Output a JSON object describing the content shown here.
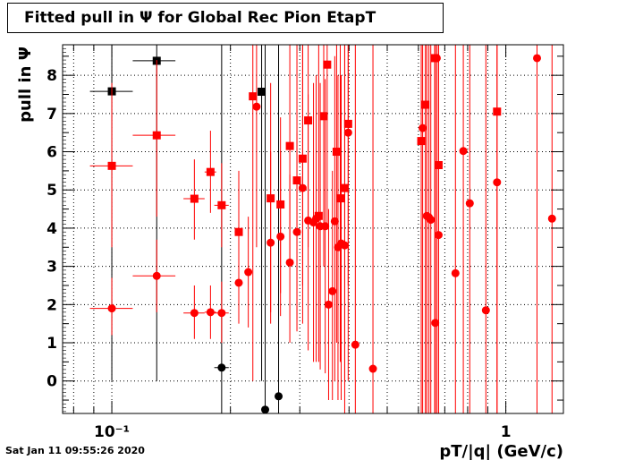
{
  "title": "Fitted pull in  Ψ  for Global Rec Pion EtapT",
  "timestamp": "Sat Jan 11 09:55:26 2020",
  "chart_data": {
    "type": "scatter",
    "title": "Fitted pull in  Ψ  for Global Rec Pion EtapT",
    "xlabel": "pT/|q| (GeV/c)",
    "ylabel": "pull in  Ψ",
    "x_scale": "log",
    "xlim": [
      0.075,
      1.4
    ],
    "ylim": [
      -0.85,
      8.8
    ],
    "grid": true,
    "x_ticks": [
      {
        "value": 0.1,
        "label": "10⁻¹"
      },
      {
        "value": 1,
        "label": "1"
      }
    ],
    "y_ticks": [
      0,
      1,
      2,
      3,
      4,
      5,
      6,
      7,
      8
    ],
    "series": [
      {
        "color": "#000000",
        "marker": "square",
        "points": [
          {
            "x": 0.1,
            "xlo": 0.088,
            "xhi": 0.113,
            "y": 7.58,
            "ylo": 0.0,
            "yhi": 8.8
          },
          {
            "x": 0.13,
            "xlo": 0.113,
            "xhi": 0.145,
            "y": 8.38,
            "ylo": 0.0,
            "yhi": 8.8
          },
          {
            "x": 0.24,
            "xlo": 0.235,
            "xhi": 0.245,
            "y": 7.57,
            "ylo": 0.0,
            "yhi": 8.8
          }
        ]
      },
      {
        "color": "#000000",
        "marker": "circle",
        "points": [
          {
            "x": 0.19,
            "xlo": 0.182,
            "xhi": 0.198,
            "y": 0.35,
            "ylo": -0.85,
            "yhi": 8.8
          },
          {
            "x": 0.245,
            "xlo": 0.24,
            "xhi": 0.25,
            "y": -0.75,
            "ylo": -0.85,
            "yhi": 8.8
          },
          {
            "x": 0.265,
            "xlo": 0.26,
            "xhi": 0.27,
            "y": -0.4,
            "ylo": -0.85,
            "yhi": 8.8
          }
        ]
      },
      {
        "color": "#ff0000",
        "marker": "square",
        "points": [
          {
            "x": 0.1,
            "xlo": 0.088,
            "xhi": 0.113,
            "y": 5.63,
            "ylo": 3.5,
            "yhi": 7.8
          },
          {
            "x": 0.13,
            "xlo": 0.113,
            "xhi": 0.145,
            "y": 6.43,
            "ylo": 4.3,
            "yhi": 8.4
          },
          {
            "x": 0.162,
            "xlo": 0.152,
            "xhi": 0.172,
            "y": 4.77,
            "ylo": 3.7,
            "yhi": 5.8
          },
          {
            "x": 0.178,
            "xlo": 0.172,
            "xhi": 0.184,
            "y": 5.47,
            "ylo": 4.4,
            "yhi": 6.55
          },
          {
            "x": 0.19,
            "xlo": 0.182,
            "xhi": 0.198,
            "y": 4.6,
            "ylo": 3.5,
            "yhi": 5.7
          },
          {
            "x": 0.21,
            "xlo": 0.205,
            "xhi": 0.215,
            "y": 3.9,
            "ylo": 2.4,
            "yhi": 5.5
          },
          {
            "x": 0.228,
            "xlo": 0.223,
            "xhi": 0.233,
            "y": 7.45,
            "ylo": 0.0,
            "yhi": 8.8
          },
          {
            "x": 0.253,
            "xlo": 0.248,
            "xhi": 0.258,
            "y": 4.78,
            "ylo": 1.8,
            "yhi": 7.8
          },
          {
            "x": 0.268,
            "xlo": 0.263,
            "xhi": 0.273,
            "y": 4.62,
            "ylo": 2.3,
            "yhi": 6.9
          },
          {
            "x": 0.283,
            "xlo": 0.279,
            "xhi": 0.287,
            "y": 6.15,
            "ylo": 3.2,
            "yhi": 8.8
          },
          {
            "x": 0.295,
            "xlo": 0.291,
            "xhi": 0.299,
            "y": 5.25,
            "ylo": 1.6,
            "yhi": 8.8
          },
          {
            "x": 0.305,
            "xlo": 0.301,
            "xhi": 0.309,
            "y": 5.82,
            "ylo": 2.5,
            "yhi": 8.8
          },
          {
            "x": 0.315,
            "xlo": 0.311,
            "xhi": 0.319,
            "y": 6.82,
            "ylo": 3.5,
            "yhi": 8.8
          },
          {
            "x": 0.335,
            "xlo": 0.331,
            "xhi": 0.339,
            "y": 4.32,
            "ylo": 0.5,
            "yhi": 8.8
          },
          {
            "x": 0.345,
            "xlo": 0.341,
            "xhi": 0.349,
            "y": 6.93,
            "ylo": 3.0,
            "yhi": 8.8
          },
          {
            "x": 0.352,
            "xlo": 0.348,
            "xhi": 0.356,
            "y": 8.28,
            "ylo": 4.0,
            "yhi": 8.8
          },
          {
            "x": 0.372,
            "xlo": 0.368,
            "xhi": 0.376,
            "y": 6.0,
            "ylo": 1.0,
            "yhi": 8.8
          },
          {
            "x": 0.38,
            "xlo": 0.376,
            "xhi": 0.384,
            "y": 4.78,
            "ylo": 0.5,
            "yhi": 8.8
          },
          {
            "x": 0.39,
            "xlo": 0.386,
            "xhi": 0.394,
            "y": 5.05,
            "ylo": 0.0,
            "yhi": 8.8
          },
          {
            "x": 0.398,
            "xlo": 0.394,
            "xhi": 0.402,
            "y": 6.73,
            "ylo": 0.0,
            "yhi": 8.8
          },
          {
            "x": 0.61,
            "xlo": 0.605,
            "xhi": 0.615,
            "y": 6.28,
            "ylo": -0.85,
            "yhi": 8.8
          },
          {
            "x": 0.625,
            "xlo": 0.62,
            "xhi": 0.63,
            "y": 7.23,
            "ylo": -0.85,
            "yhi": 8.8
          },
          {
            "x": 0.66,
            "xlo": 0.655,
            "xhi": 0.665,
            "y": 8.45,
            "ylo": -0.85,
            "yhi": 8.8
          },
          {
            "x": 0.675,
            "xlo": 0.67,
            "xhi": 0.68,
            "y": 5.65,
            "ylo": -0.85,
            "yhi": 8.8
          },
          {
            "x": 0.95,
            "xlo": 0.945,
            "xhi": 0.955,
            "y": 7.05,
            "ylo": -0.85,
            "yhi": 8.8
          }
        ]
      },
      {
        "color": "#ff0000",
        "marker": "circle",
        "points": [
          {
            "x": 0.1,
            "xlo": 0.088,
            "xhi": 0.113,
            "y": 1.9,
            "ylo": 1.2,
            "yhi": 2.7
          },
          {
            "x": 0.13,
            "xlo": 0.113,
            "xhi": 0.145,
            "y": 2.75,
            "ylo": 1.8,
            "yhi": 3.7
          },
          {
            "x": 0.162,
            "xlo": 0.152,
            "xhi": 0.172,
            "y": 1.78,
            "ylo": 1.1,
            "yhi": 2.5
          },
          {
            "x": 0.178,
            "xlo": 0.172,
            "xhi": 0.184,
            "y": 1.8,
            "ylo": 1.1,
            "yhi": 2.5
          },
          {
            "x": 0.19,
            "xlo": 0.182,
            "xhi": 0.198,
            "y": 1.78,
            "ylo": 1.0,
            "yhi": 2.6
          },
          {
            "x": 0.21,
            "xlo": 0.205,
            "xhi": 0.215,
            "y": 2.57,
            "ylo": 1.5,
            "yhi": 3.6
          },
          {
            "x": 0.222,
            "xlo": 0.218,
            "xhi": 0.226,
            "y": 2.85,
            "ylo": 1.4,
            "yhi": 4.3
          },
          {
            "x": 0.233,
            "xlo": 0.229,
            "xhi": 0.237,
            "y": 7.18,
            "ylo": 3.5,
            "yhi": 8.8
          },
          {
            "x": 0.253,
            "xlo": 0.249,
            "xhi": 0.257,
            "y": 3.62,
            "ylo": 1.5,
            "yhi": 6.0
          },
          {
            "x": 0.268,
            "xlo": 0.264,
            "xhi": 0.272,
            "y": 3.78,
            "ylo": 1.7,
            "yhi": 6.0
          },
          {
            "x": 0.283,
            "xlo": 0.279,
            "xhi": 0.287,
            "y": 3.1,
            "ylo": 1.0,
            "yhi": 5.4
          },
          {
            "x": 0.295,
            "xlo": 0.291,
            "xhi": 0.299,
            "y": 3.9,
            "ylo": 1.3,
            "yhi": 6.5
          },
          {
            "x": 0.305,
            "xlo": 0.301,
            "xhi": 0.309,
            "y": 5.05,
            "ylo": 1.5,
            "yhi": 8.8
          },
          {
            "x": 0.315,
            "xlo": 0.311,
            "xhi": 0.319,
            "y": 4.2,
            "ylo": 0.8,
            "yhi": 7.5
          },
          {
            "x": 0.325,
            "xlo": 0.321,
            "xhi": 0.329,
            "y": 4.15,
            "ylo": 0.5,
            "yhi": 7.8
          },
          {
            "x": 0.33,
            "xlo": 0.326,
            "xhi": 0.334,
            "y": 4.25,
            "ylo": 0.5,
            "yhi": 8.0
          },
          {
            "x": 0.338,
            "xlo": 0.334,
            "xhi": 0.342,
            "y": 4.05,
            "ylo": 0.3,
            "yhi": 7.8
          },
          {
            "x": 0.348,
            "xlo": 0.344,
            "xhi": 0.352,
            "y": 4.05,
            "ylo": 0.2,
            "yhi": 7.9
          },
          {
            "x": 0.355,
            "xlo": 0.351,
            "xhi": 0.359,
            "y": 2.0,
            "ylo": -0.5,
            "yhi": 4.5
          },
          {
            "x": 0.363,
            "xlo": 0.359,
            "xhi": 0.367,
            "y": 2.35,
            "ylo": -0.5,
            "yhi": 5.5
          },
          {
            "x": 0.368,
            "xlo": 0.364,
            "xhi": 0.372,
            "y": 4.18,
            "ylo": 0.0,
            "yhi": 8.5
          },
          {
            "x": 0.375,
            "xlo": 0.371,
            "xhi": 0.379,
            "y": 3.5,
            "ylo": -0.5,
            "yhi": 8.0
          },
          {
            "x": 0.382,
            "xlo": 0.378,
            "xhi": 0.386,
            "y": 3.6,
            "ylo": -0.5,
            "yhi": 8.0
          },
          {
            "x": 0.39,
            "xlo": 0.386,
            "xhi": 0.394,
            "y": 3.55,
            "ylo": -0.85,
            "yhi": 8.8
          },
          {
            "x": 0.398,
            "xlo": 0.394,
            "xhi": 0.402,
            "y": 6.5,
            "ylo": 2.5,
            "yhi": 8.8
          },
          {
            "x": 0.415,
            "xlo": 0.411,
            "xhi": 0.419,
            "y": 0.95,
            "ylo": -0.85,
            "yhi": 8.8
          },
          {
            "x": 0.46,
            "xlo": 0.456,
            "xhi": 0.464,
            "y": 0.32,
            "ylo": -0.85,
            "yhi": 8.8
          },
          {
            "x": 0.615,
            "xlo": 0.611,
            "xhi": 0.619,
            "y": 6.62,
            "ylo": -0.85,
            "yhi": 8.8
          },
          {
            "x": 0.63,
            "xlo": 0.626,
            "xhi": 0.634,
            "y": 4.32,
            "ylo": -0.85,
            "yhi": 8.8
          },
          {
            "x": 0.638,
            "xlo": 0.634,
            "xhi": 0.642,
            "y": 4.28,
            "ylo": -0.85,
            "yhi": 8.8
          },
          {
            "x": 0.645,
            "xlo": 0.641,
            "xhi": 0.649,
            "y": 4.22,
            "ylo": -0.85,
            "yhi": 8.8
          },
          {
            "x": 0.662,
            "xlo": 0.658,
            "xhi": 0.666,
            "y": 1.52,
            "ylo": -0.85,
            "yhi": 8.8
          },
          {
            "x": 0.668,
            "xlo": 0.664,
            "xhi": 0.672,
            "y": 8.45,
            "ylo": -0.85,
            "yhi": 8.8
          },
          {
            "x": 0.675,
            "xlo": 0.671,
            "xhi": 0.679,
            "y": 3.82,
            "ylo": -0.85,
            "yhi": 8.8
          },
          {
            "x": 0.745,
            "xlo": 0.741,
            "xhi": 0.749,
            "y": 2.82,
            "ylo": -0.85,
            "yhi": 8.8
          },
          {
            "x": 0.78,
            "xlo": 0.776,
            "xhi": 0.784,
            "y": 6.02,
            "ylo": -0.85,
            "yhi": 8.8
          },
          {
            "x": 0.81,
            "xlo": 0.806,
            "xhi": 0.814,
            "y": 4.65,
            "ylo": -0.85,
            "yhi": 8.8
          },
          {
            "x": 0.89,
            "xlo": 0.886,
            "xhi": 0.894,
            "y": 1.85,
            "ylo": -0.85,
            "yhi": 8.8
          },
          {
            "x": 0.95,
            "xlo": 0.946,
            "xhi": 0.954,
            "y": 5.2,
            "ylo": -0.85,
            "yhi": 8.8
          },
          {
            "x": 1.2,
            "xlo": 1.19,
            "xhi": 1.21,
            "y": 8.45,
            "ylo": -0.85,
            "yhi": 8.8
          },
          {
            "x": 1.31,
            "xlo": 1.3,
            "xhi": 1.32,
            "y": 4.25,
            "ylo": -0.85,
            "yhi": 8.8
          }
        ]
      }
    ]
  }
}
